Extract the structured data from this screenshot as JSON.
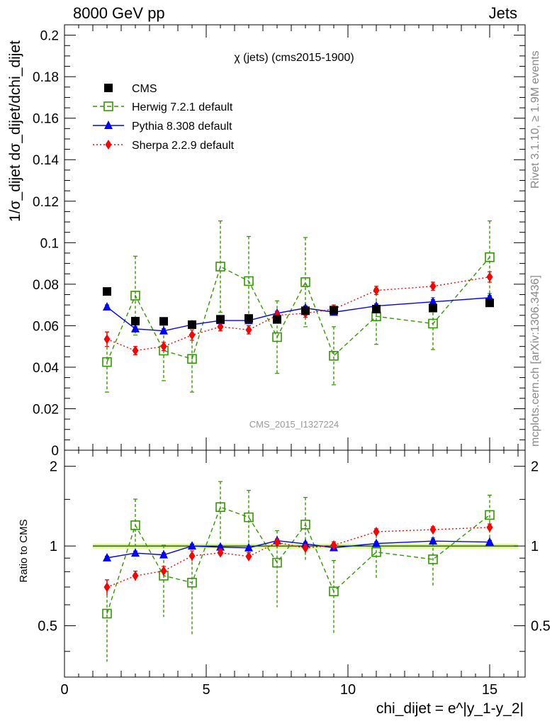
{
  "header": {
    "left": "8000 GeV pp",
    "right": "Jets",
    "side_rivet": "Rivet 3.1.10, ≥ 1.9M events",
    "side_mcplots": "mcplots.cern.ch [arXiv:1306.3436]"
  },
  "chart_data": {
    "type": "scatter",
    "title": "χ (jets) (cms2015-1900)",
    "watermark": "CMS_2015_I1327224",
    "xlabel": "chi_dijet = e^|y_1-y_2|",
    "ylabel": "1/σ_dijet dσ_dijet/dchi_dijet",
    "ratio_ylabel": "Ratio to CMS",
    "xlim": [
      0,
      16.25
    ],
    "ylim": [
      0,
      0.205
    ],
    "ratio_ylim": [
      0.32,
      2.3
    ],
    "x_ticks": [
      "0",
      "5",
      "10",
      "15"
    ],
    "y_ticks": [
      "0",
      "0.02",
      "0.04",
      "0.06",
      "0.08",
      "0.1",
      "0.12",
      "0.14",
      "0.16",
      "0.18",
      "0.2"
    ],
    "ratio_ticks": [
      "0.5",
      "1",
      "2"
    ],
    "legend_position": "top-left",
    "colors": {
      "cms": "#000000",
      "herwig": "#339900",
      "pythia": "#0000ff",
      "sherpa": "#ff0000",
      "band": "#ccff66"
    },
    "x": [
      1.5,
      2.5,
      3.5,
      4.5,
      5.5,
      6.5,
      7.5,
      8.5,
      9.5,
      11,
      13,
      15
    ],
    "series": [
      {
        "name": "CMS",
        "marker": "square-filled",
        "line": "none",
        "values": [
          0.0765,
          0.0622,
          0.0621,
          0.0605,
          0.0631,
          0.0635,
          0.063,
          0.0672,
          0.0675,
          0.068,
          0.0685,
          0.071
        ],
        "errors": [
          0.0004,
          0.0004,
          0.0004,
          0.0004,
          0.0004,
          0.0004,
          0.0004,
          0.0004,
          0.0004,
          0.0004,
          0.0004,
          0.0004
        ]
      },
      {
        "name": "Herwig 7.2.1 default",
        "marker": "square-open",
        "line": "dashed",
        "values": [
          0.0425,
          0.0745,
          0.048,
          0.044,
          0.0885,
          0.0815,
          0.0545,
          0.081,
          0.0455,
          0.0645,
          0.061,
          0.093
        ],
        "errors": [
          0.0145,
          0.019,
          0.0145,
          0.016,
          0.022,
          0.0215,
          0.0175,
          0.0215,
          0.014,
          0.0135,
          0.0125,
          0.0175
        ]
      },
      {
        "name": "Pythia 8.308 default",
        "marker": "triangle-filled",
        "line": "solid",
        "values": [
          0.069,
          0.0585,
          0.0575,
          0.0605,
          0.0625,
          0.0625,
          0.066,
          0.0685,
          0.0665,
          0.0695,
          0.0715,
          0.0735
        ],
        "errors": [
          0.001,
          0.001,
          0.001,
          0.001,
          0.001,
          0.001,
          0.001,
          0.001,
          0.001,
          0.001,
          0.001,
          0.001
        ]
      },
      {
        "name": "Sherpa 2.2.9 default",
        "marker": "diamond-filled",
        "line": "dotted",
        "values": [
          0.0535,
          0.048,
          0.05,
          0.0555,
          0.0595,
          0.058,
          0.065,
          0.066,
          0.068,
          0.077,
          0.079,
          0.0835
        ],
        "errors": [
          0.0035,
          0.002,
          0.002,
          0.0025,
          0.002,
          0.002,
          0.002,
          0.002,
          0.002,
          0.002,
          0.002,
          0.0025
        ]
      }
    ],
    "ratio_band": {
      "low": 0.98,
      "high": 1.02
    }
  }
}
